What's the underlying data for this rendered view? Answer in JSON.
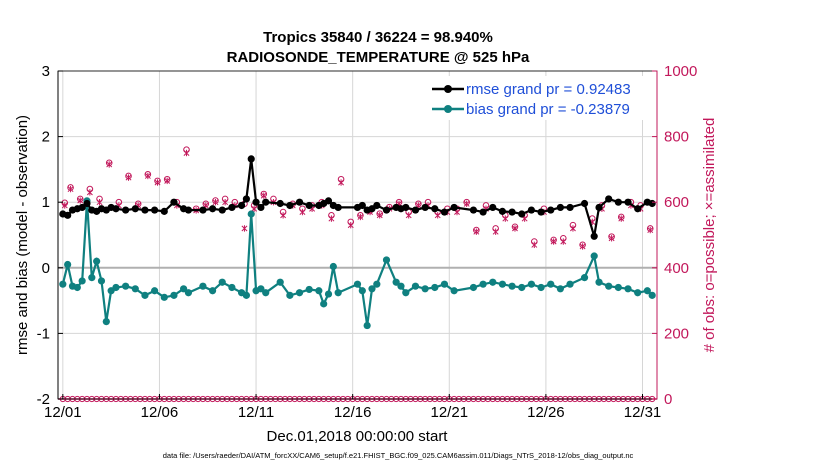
{
  "chart_data": {
    "type": "line",
    "title_line1": "Tropics 35840 / 36224 = 98.940%",
    "title_line2": "RADIOSONDE_TEMPERATURE @ 525 hPa",
    "xlabel": "Dec.01,2018 00:00:00 start",
    "ylabel_left": "rmse and bias (model - observation)",
    "ylabel_right": "# of obs: o=possible; ×=assimilated",
    "footnote": "data file: /Users/raeder/DAI/ATM_forcXX/CAM6_setup/f.e21.FHIST_BGC.f09_025.CAM6assim.011/Diags_NTrS_2018-12/obs_diag_output.nc",
    "xlim": [
      0.75,
      31.75
    ],
    "ylim_left": [
      -2,
      3
    ],
    "ylim_right": [
      0,
      1000
    ],
    "x_tick_values": [
      1,
      6,
      11,
      16,
      21,
      26,
      31
    ],
    "x_tick_labels": [
      "12/01",
      "12/06",
      "12/11",
      "12/16",
      "12/21",
      "12/26",
      "12/31"
    ],
    "y_left_ticks": [
      -2,
      -1,
      0,
      1,
      2,
      3
    ],
    "y_right_ticks": [
      0,
      200,
      400,
      600,
      800,
      1000
    ],
    "colors": {
      "rmse": "#000000",
      "bias": "#0f8080",
      "obs": "#c2185b",
      "legend_text": "#1f4fd8",
      "zero_line": "#b0b0b0"
    },
    "legend": [
      {
        "name": "rmse",
        "label": "rmse grand pr = 0.92483"
      },
      {
        "name": "bias",
        "label": "bias grand pr = -0.23879"
      }
    ],
    "series": [
      {
        "name": "rmse",
        "x": [
          1,
          1.25,
          1.5,
          1.75,
          2,
          2.25,
          2.5,
          2.75,
          3,
          3.25,
          3.5,
          3.75,
          4.25,
          4.75,
          5.25,
          5.75,
          6.25,
          6.75,
          7.25,
          7.5,
          8.25,
          8.75,
          9.25,
          9.75,
          10.25,
          10.5,
          10.75,
          11,
          11.25,
          11.5,
          12.25,
          12.75,
          13.25,
          13.75,
          14.25,
          14.5,
          14.75,
          15,
          15.25,
          16.25,
          16.5,
          16.75,
          17,
          17.25,
          17.75,
          18.25,
          18.5,
          18.75,
          19.25,
          19.75,
          20.25,
          20.75,
          21.25,
          22.25,
          22.75,
          23.25,
          23.75,
          24.25,
          24.75,
          25.25,
          25.75,
          26.25,
          26.75,
          27.25,
          28,
          28.5,
          28.75,
          29.25,
          29.75,
          30.25,
          30.75,
          31.25,
          31.5
        ],
        "values": [
          0.82,
          0.8,
          0.88,
          0.9,
          0.92,
          0.98,
          0.88,
          0.86,
          0.9,
          0.88,
          0.92,
          0.9,
          0.88,
          0.9,
          0.88,
          0.88,
          0.86,
          1.0,
          0.9,
          0.88,
          0.88,
          0.9,
          0.88,
          0.92,
          0.95,
          1.05,
          1.66,
          1.0,
          0.92,
          1.0,
          0.98,
          0.95,
          1.0,
          0.95,
          0.95,
          0.98,
          1.02,
          0.95,
          0.92,
          0.92,
          0.95,
          0.88,
          0.9,
          0.95,
          0.88,
          0.92,
          0.9,
          0.92,
          0.88,
          0.92,
          0.9,
          0.85,
          0.92,
          0.88,
          0.85,
          0.92,
          0.86,
          0.85,
          0.82,
          0.88,
          0.85,
          0.88,
          0.92,
          0.92,
          0.98,
          0.48,
          0.92,
          1.05,
          1.0,
          1.0,
          0.9,
          1.0,
          0.98
        ]
      },
      {
        "name": "bias",
        "x": [
          1,
          1.25,
          1.5,
          1.75,
          2,
          2.25,
          2.5,
          2.75,
          3,
          3.25,
          3.5,
          3.75,
          4.25,
          4.75,
          5.25,
          5.75,
          6.25,
          6.75,
          7.25,
          7.5,
          8.25,
          8.75,
          9.25,
          9.75,
          10.25,
          10.5,
          10.75,
          11,
          11.25,
          11.5,
          12.25,
          12.75,
          13.25,
          13.75,
          14.25,
          14.5,
          14.75,
          15,
          15.25,
          16.25,
          16.5,
          16.75,
          17,
          17.25,
          17.75,
          18.25,
          18.5,
          18.75,
          19.25,
          19.75,
          20.25,
          20.75,
          21.25,
          22.25,
          22.75,
          23.25,
          23.75,
          24.25,
          24.75,
          25.25,
          25.75,
          26.25,
          26.75,
          27.25,
          28,
          28.5,
          28.75,
          29.25,
          29.75,
          30.25,
          30.75,
          31.25,
          31.5
        ],
        "values": [
          -0.25,
          0.05,
          -0.28,
          -0.3,
          -0.2,
          1.02,
          -0.15,
          0.1,
          -0.2,
          -0.82,
          -0.35,
          -0.3,
          -0.28,
          -0.32,
          -0.42,
          -0.35,
          -0.45,
          -0.42,
          -0.32,
          -0.38,
          -0.28,
          -0.35,
          -0.22,
          -0.3,
          -0.38,
          -0.42,
          0.82,
          -0.35,
          -0.32,
          -0.38,
          -0.22,
          -0.42,
          -0.38,
          -0.33,
          -0.35,
          -0.55,
          -0.4,
          0.02,
          -0.38,
          -0.25,
          -0.35,
          -0.88,
          -0.32,
          -0.25,
          0.12,
          -0.22,
          -0.28,
          -0.38,
          -0.28,
          -0.32,
          -0.3,
          -0.25,
          -0.35,
          -0.3,
          -0.25,
          -0.22,
          -0.25,
          -0.28,
          -0.3,
          -0.25,
          -0.3,
          -0.25,
          -0.32,
          -0.25,
          -0.15,
          0.18,
          -0.22,
          -0.28,
          -0.3,
          -0.32,
          -0.38,
          -0.35,
          -0.42
        ]
      },
      {
        "name": "obs_possible",
        "x": [
          1.1,
          1.4,
          1.9,
          2.4,
          2.9,
          3.4,
          3.9,
          4.4,
          4.9,
          5.4,
          5.9,
          6.4,
          6.9,
          7.4,
          7.9,
          8.4,
          8.9,
          9.4,
          9.9,
          10.4,
          10.9,
          11.4,
          11.9,
          12.4,
          12.9,
          13.4,
          13.9,
          14.4,
          14.9,
          15.4,
          15.9,
          16.4,
          16.9,
          17.4,
          17.9,
          18.4,
          18.9,
          19.4,
          19.9,
          20.4,
          20.9,
          21.4,
          21.9,
          22.4,
          22.9,
          23.4,
          23.9,
          24.4,
          24.9,
          25.4,
          25.9,
          26.4,
          26.9,
          27.4,
          27.9,
          28.4,
          28.9,
          29.4,
          29.9,
          30.4,
          30.9,
          31.4
        ],
        "values": [
          598,
          645,
          610,
          640,
          610,
          720,
          600,
          680,
          595,
          685,
          665,
          670,
          600,
          760,
          580,
          595,
          605,
          610,
          600,
          595,
          590,
          625,
          610,
          570,
          595,
          580,
          590,
          600,
          560,
          670,
          540,
          560,
          575,
          565,
          585,
          600,
          570,
          595,
          600,
          570,
          580,
          580,
          600,
          515,
          590,
          520,
          560,
          525,
          560,
          480,
          580,
          485,
          490,
          530,
          470,
          550,
          590,
          495,
          555,
          600,
          590,
          520
        ]
      },
      {
        "name": "obs_assimilated",
        "x": [
          1.1,
          1.4,
          1.9,
          2.4,
          2.9,
          3.4,
          3.9,
          4.4,
          4.9,
          5.4,
          5.9,
          6.4,
          6.9,
          7.4,
          7.9,
          8.4,
          8.9,
          9.4,
          9.9,
          10.4,
          10.9,
          11.4,
          11.9,
          12.4,
          12.9,
          13.4,
          13.9,
          14.4,
          14.9,
          15.4,
          15.9,
          16.4,
          16.9,
          17.4,
          17.9,
          18.4,
          18.9,
          19.4,
          19.9,
          20.4,
          20.9,
          21.4,
          21.9,
          22.4,
          22.9,
          23.4,
          23.9,
          24.4,
          24.9,
          25.4,
          25.9,
          26.4,
          26.9,
          27.4,
          27.9,
          28.4,
          28.9,
          29.4,
          29.9,
          30.4,
          30.9,
          31.4
        ],
        "values": [
          590,
          640,
          605,
          630,
          600,
          715,
          590,
          675,
          590,
          680,
          660,
          665,
          590,
          750,
          575,
          590,
          600,
          600,
          590,
          520,
          580,
          620,
          600,
          560,
          590,
          570,
          580,
          590,
          550,
          660,
          530,
          555,
          570,
          560,
          580,
          595,
          560,
          590,
          590,
          560,
          570,
          570,
          595,
          510,
          580,
          510,
          550,
          520,
          550,
          470,
          570,
          480,
          480,
          520,
          465,
          540,
          580,
          490,
          550,
          590,
          580,
          515
        ]
      },
      {
        "name": "obs_bottom_row",
        "x": [
          1,
          1.25,
          1.5,
          1.75,
          2,
          2.25,
          2.5,
          2.75,
          3,
          3.25,
          3.5,
          3.75,
          4,
          4.25,
          4.5,
          4.75,
          5,
          5.25,
          5.5,
          5.75,
          6,
          6.25,
          6.5,
          6.75,
          7,
          7.25,
          7.5,
          7.75,
          8,
          8.25,
          8.5,
          8.75,
          9,
          9.25,
          9.5,
          9.75,
          10,
          10.25,
          10.5,
          10.75,
          11,
          11.25,
          11.5,
          11.75,
          12,
          12.25,
          12.5,
          12.75,
          13,
          13.25,
          13.5,
          13.75,
          14,
          14.25,
          14.5,
          14.75,
          15,
          15.25,
          15.5,
          15.75,
          16,
          16.25,
          16.5,
          16.75,
          17,
          17.25,
          17.5,
          17.75,
          18,
          18.25,
          18.5,
          18.75,
          19,
          19.25,
          19.5,
          19.75,
          20,
          20.25,
          20.5,
          20.75,
          21,
          21.25,
          21.5,
          21.75,
          22,
          22.25,
          22.5,
          22.75,
          23,
          23.25,
          23.5,
          23.75,
          24,
          24.25,
          24.5,
          24.75,
          25,
          25.25,
          25.5,
          25.75,
          26,
          26.25,
          26.5,
          26.75,
          27,
          27.25,
          27.5,
          27.75,
          28,
          28.25,
          28.5,
          28.75,
          29,
          29.25,
          29.5,
          29.75,
          30,
          30.25,
          30.5,
          30.75,
          31,
          31.25,
          31.5
        ],
        "values": [
          0,
          0,
          0,
          0,
          0,
          0,
          0,
          0,
          0,
          0,
          0,
          0,
          0,
          0,
          0,
          0,
          0,
          0,
          0,
          0,
          0,
          0,
          0,
          0,
          0,
          0,
          0,
          0,
          0,
          0,
          0,
          0,
          0,
          0,
          0,
          0,
          0,
          0,
          0,
          0,
          0,
          0,
          0,
          0,
          0,
          0,
          0,
          0,
          0,
          0,
          0,
          0,
          0,
          0,
          0,
          0,
          0,
          0,
          0,
          0,
          0,
          0,
          0,
          0,
          0,
          0,
          0,
          0,
          0,
          0,
          0,
          0,
          0,
          0,
          0,
          0,
          0,
          0,
          0,
          0,
          0,
          0,
          0,
          0,
          0,
          0,
          0,
          0,
          0,
          0,
          0,
          0,
          0,
          0,
          0,
          0,
          0,
          0,
          0,
          0,
          0,
          0,
          0,
          0,
          0,
          0,
          0,
          0,
          0,
          0,
          0,
          0,
          0,
          0,
          0,
          0,
          0,
          0,
          0,
          0,
          0,
          0,
          0
        ]
      }
    ]
  }
}
